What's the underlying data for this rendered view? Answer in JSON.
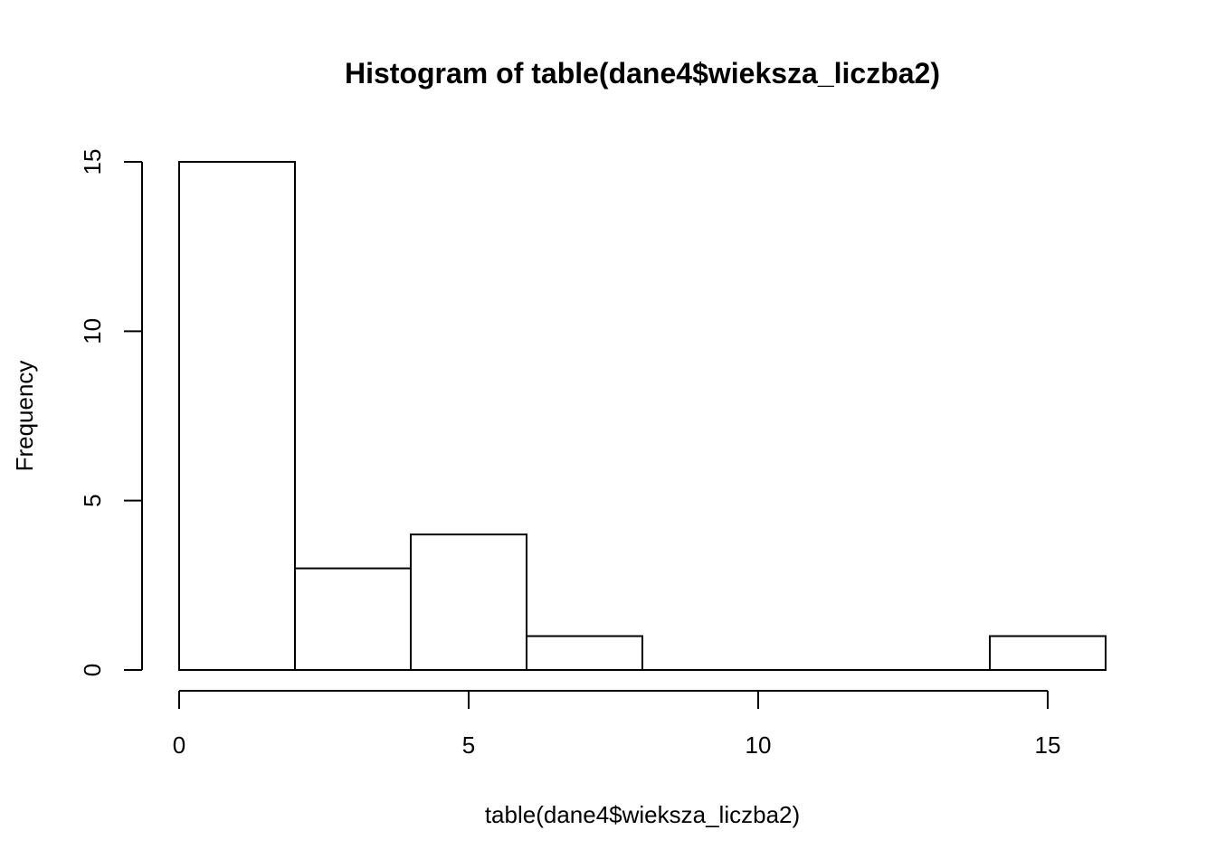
{
  "chart_data": {
    "type": "bar",
    "title": "Histogram of table(dane4$wieksza_liczba2)",
    "xlabel": "table(dane4$wieksza_liczba2)",
    "ylabel": "Frequency",
    "bins": [
      {
        "x0": 0,
        "x1": 2,
        "count": 15
      },
      {
        "x0": 2,
        "x1": 4,
        "count": 3
      },
      {
        "x0": 4,
        "x1": 6,
        "count": 4
      },
      {
        "x0": 6,
        "x1": 8,
        "count": 1
      },
      {
        "x0": 8,
        "x1": 10,
        "count": 0
      },
      {
        "x0": 10,
        "x1": 12,
        "count": 0
      },
      {
        "x0": 12,
        "x1": 14,
        "count": 0
      },
      {
        "x0": 14,
        "x1": 16,
        "count": 1
      }
    ],
    "xlim": [
      0,
      16
    ],
    "ylim": [
      0,
      15
    ],
    "x_ticks": [
      0,
      5,
      10,
      15
    ],
    "y_ticks": [
      0,
      5,
      10,
      15
    ],
    "grid": false,
    "colors": {
      "bar_fill": "#ffffff",
      "bar_stroke": "#000000"
    }
  }
}
